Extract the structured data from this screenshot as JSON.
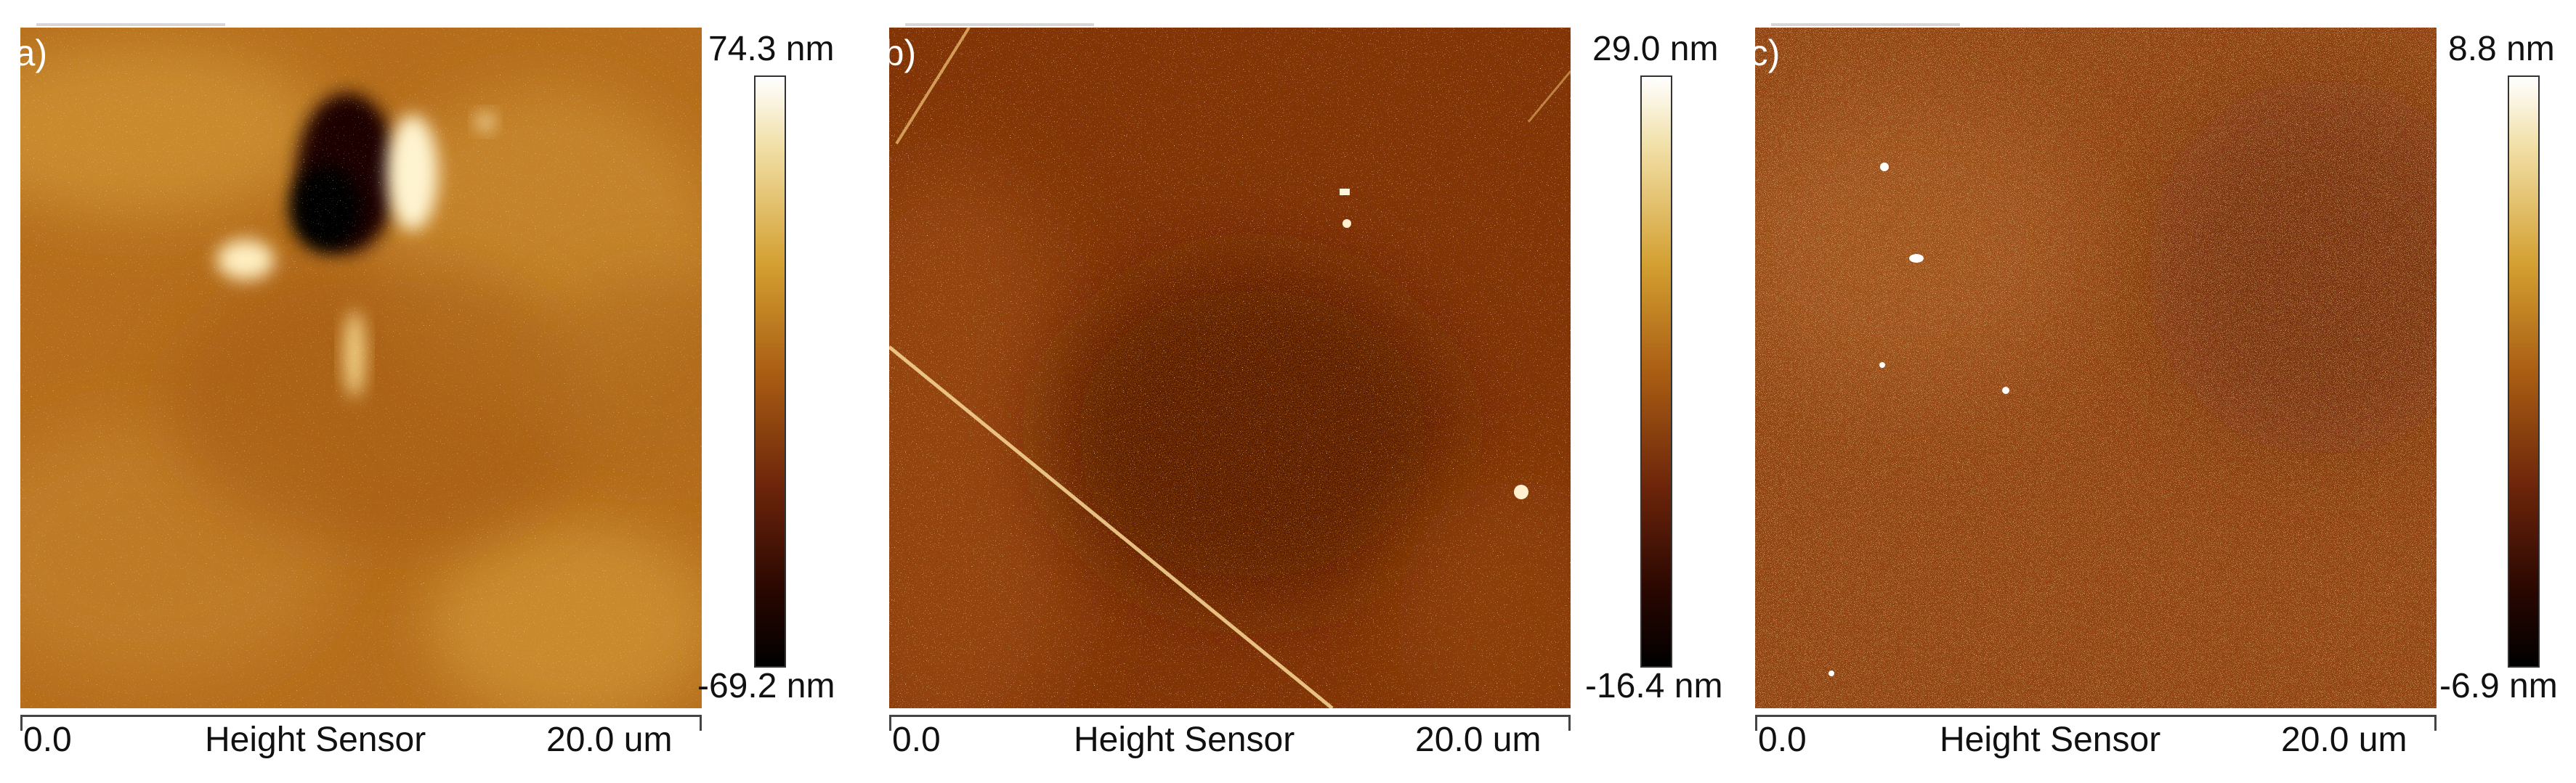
{
  "panels": [
    {
      "label": "(a)",
      "scale_max": "74.3 nm",
      "scale_min": "-69.2 nm",
      "axis_start": "0.0",
      "axis_title": "Height Sensor",
      "axis_end": "20.0 um"
    },
    {
      "label": "(b)",
      "scale_max": "29.0 nm",
      "scale_min": "-16.4 nm",
      "axis_start": "0.0",
      "axis_title": "Height Sensor",
      "axis_end": "20.0 um"
    },
    {
      "label": "(c)",
      "scale_max": "8.8 nm",
      "scale_min": "-6.9 nm",
      "axis_start": "0.0",
      "axis_title": "Height Sensor",
      "axis_end": "20.0 um"
    }
  ]
}
